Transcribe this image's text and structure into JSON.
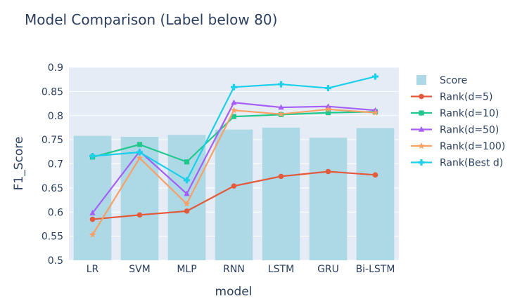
{
  "chart_data": {
    "type": "bar",
    "title": "Model Comparison (Label below 80)",
    "xlabel": "model",
    "ylabel": "F1_Score",
    "ylim": [
      0.5,
      0.9
    ],
    "yticks": [
      "0.5",
      "0.55",
      "0.6",
      "0.65",
      "0.7",
      "0.75",
      "0.8",
      "0.85",
      "0.9"
    ],
    "categories": [
      "LR",
      "SVM",
      "MLP",
      "RNN",
      "LSTM",
      "GRU",
      "Bi-LSTM"
    ],
    "grid": true,
    "legend_position": "right",
    "bars": {
      "name": "Score",
      "color": "#add8e6",
      "values": [
        0.758,
        0.756,
        0.76,
        0.771,
        0.775,
        0.754,
        0.774
      ]
    },
    "series": [
      {
        "name": "Rank(d=5)",
        "color": "#e45a3d",
        "marker": "circle",
        "values": [
          0.585,
          0.594,
          0.602,
          0.654,
          0.674,
          0.684,
          0.677
        ]
      },
      {
        "name": "Rank(d=10)",
        "color": "#1fc98e",
        "marker": "square",
        "values": [
          0.714,
          0.74,
          0.704,
          0.798,
          0.802,
          0.806,
          0.808
        ]
      },
      {
        "name": "Rank(d=50)",
        "color": "#a55ff6",
        "marker": "triangle",
        "values": [
          0.598,
          0.726,
          0.638,
          0.827,
          0.817,
          0.819,
          0.811
        ]
      },
      {
        "name": "Rank(d=100)",
        "color": "#f9a065",
        "marker": "star",
        "values": [
          0.553,
          0.712,
          0.617,
          0.811,
          0.803,
          0.813,
          0.806
        ]
      },
      {
        "name": "Rank(Best d)",
        "color": "#1ccfea",
        "marker": "cross",
        "values": [
          0.716,
          0.724,
          0.666,
          0.859,
          0.865,
          0.857,
          0.881
        ]
      }
    ]
  }
}
